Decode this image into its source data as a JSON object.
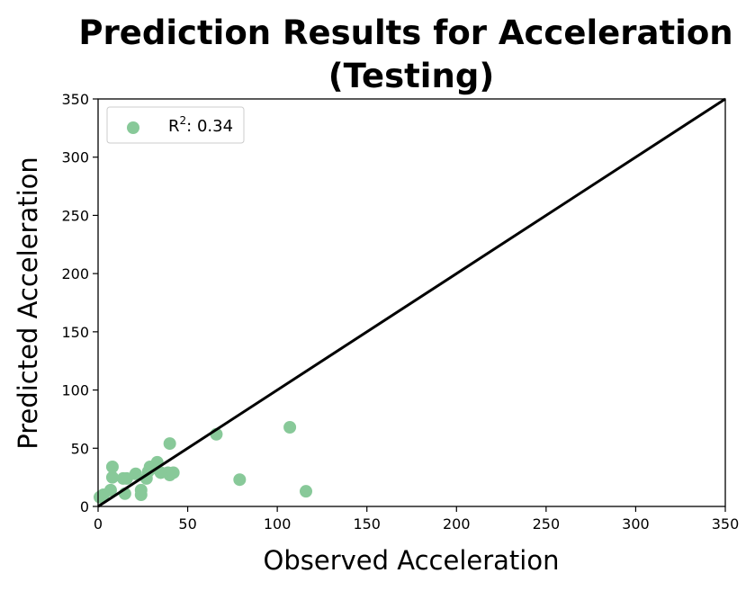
{
  "chart_data": {
    "type": "scatter",
    "title_line1": "Prediction Results for Acceleration",
    "title_line2": "(Testing)",
    "xlabel": "Observed Acceleration",
    "ylabel": "Predicted Acceleration",
    "xlim": [
      0,
      350
    ],
    "ylim": [
      0,
      350
    ],
    "xticks": [
      0,
      50,
      100,
      150,
      200,
      250,
      300,
      350
    ],
    "yticks": [
      0,
      50,
      100,
      150,
      200,
      250,
      300,
      350
    ],
    "grid": false,
    "legend": {
      "placement": "top-left",
      "text_base": "R",
      "text_sup": "2",
      "text_value": ": 0.34"
    },
    "reference_line": {
      "from": [
        0,
        0
      ],
      "to": [
        350,
        350
      ],
      "color": "#000000"
    },
    "series": [
      {
        "color": "#88c999",
        "points": [
          [
            1,
            8
          ],
          [
            3,
            10
          ],
          [
            7,
            14
          ],
          [
            8,
            34
          ],
          [
            8,
            25
          ],
          [
            14,
            24
          ],
          [
            16,
            24
          ],
          [
            15,
            11
          ],
          [
            21,
            28
          ],
          [
            24,
            14
          ],
          [
            24,
            10
          ],
          [
            27,
            24
          ],
          [
            28,
            30
          ],
          [
            29,
            34
          ],
          [
            32,
            33
          ],
          [
            33,
            38
          ],
          [
            35,
            29
          ],
          [
            39,
            29
          ],
          [
            40,
            27
          ],
          [
            42,
            29
          ],
          [
            40,
            54
          ],
          [
            66,
            62
          ],
          [
            79,
            23
          ],
          [
            107,
            68
          ],
          [
            116,
            13
          ]
        ]
      }
    ]
  }
}
